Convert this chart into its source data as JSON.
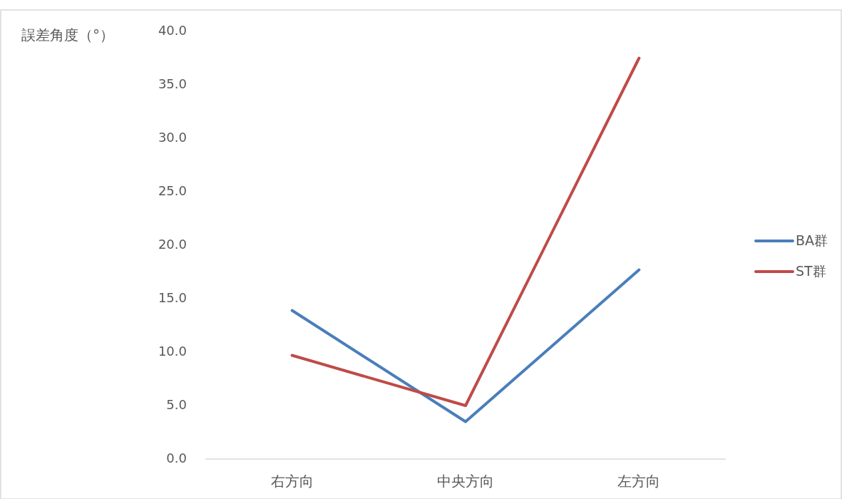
{
  "chart_data": {
    "type": "line",
    "ylabel": "誤差角度（°）",
    "categories": [
      "右方向",
      "中央方向",
      "左方向"
    ],
    "series": [
      {
        "name": "BA群",
        "color": "#4a7ebb",
        "values": [
          13.9,
          3.5,
          17.7
        ]
      },
      {
        "name": "ST群",
        "color": "#be4b48",
        "values": [
          9.7,
          5.0,
          37.5
        ]
      }
    ],
    "ylim": [
      0,
      40
    ],
    "yticks": [
      {
        "value": 0,
        "label": "0.0"
      },
      {
        "value": 5,
        "label": "5.0"
      },
      {
        "value": 10,
        "label": "10.0"
      },
      {
        "value": 15,
        "label": "15.0"
      },
      {
        "value": 20,
        "label": "20.0"
      },
      {
        "value": 25,
        "label": "25.0"
      },
      {
        "value": 30,
        "label": "30.0"
      },
      {
        "value": 35,
        "label": "35.0"
      },
      {
        "value": 40,
        "label": "40.0"
      }
    ],
    "grid": false,
    "legend": "right",
    "marker": "none",
    "line_style": "solid"
  }
}
